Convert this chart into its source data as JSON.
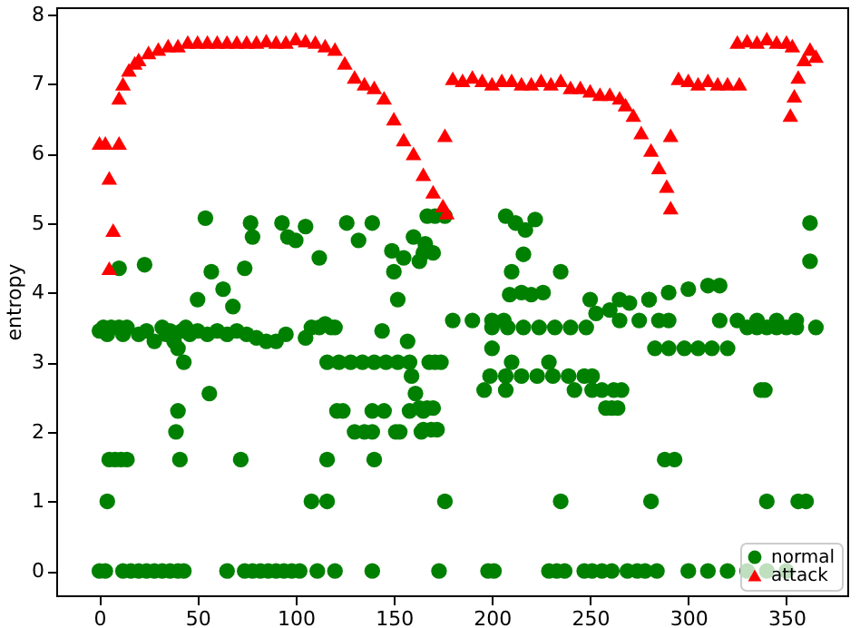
{
  "chart_data": {
    "type": "scatter",
    "ylabel": "entropy",
    "xlim": [
      -22,
      381
    ],
    "ylim": [
      -0.35,
      8.1
    ],
    "xticks": [
      0,
      50,
      100,
      150,
      200,
      250,
      300,
      350
    ],
    "yticks": [
      0,
      1,
      2,
      3,
      4,
      5,
      6,
      7,
      8
    ],
    "grid": false,
    "legend": "bottom right",
    "series": [
      {
        "name": "normal",
        "color": "#008000",
        "marker": "circle",
        "x": [
          0,
          2,
          4,
          6,
          10,
          12,
          14,
          20,
          24,
          28,
          32,
          34,
          36,
          38,
          40,
          42,
          44,
          46,
          50,
          55,
          60,
          65,
          70,
          75,
          80,
          85,
          90,
          95,
          105,
          108,
          112,
          115,
          118,
          120,
          10,
          23,
          50,
          57,
          63,
          68,
          74,
          54,
          77,
          78,
          93,
          96,
          100,
          105,
          112,
          126,
          132,
          139,
          149,
          155,
          163,
          150,
          152,
          43,
          116,
          122,
          128,
          134,
          140,
          146,
          152,
          158,
          144,
          157,
          159,
          161,
          56,
          40,
          121,
          124,
          139,
          145,
          158,
          165,
          39,
          130,
          135,
          139,
          151,
          153,
          164,
          5,
          8,
          11,
          14,
          41,
          72,
          116,
          140,
          4,
          108,
          116,
          0,
          3,
          12,
          16,
          20,
          24,
          28,
          32,
          36,
          40,
          43,
          65,
          74,
          78,
          82,
          86,
          90,
          94,
          98,
          102,
          111,
          120,
          139,
          173,
          198,
          201,
          229,
          233,
          237,
          247,
          251,
          256,
          261,
          269,
          274,
          278,
          284,
          300,
          310,
          320,
          330,
          340,
          350,
          176,
          235,
          281,
          340,
          356,
          360,
          288,
          293,
          165,
          169,
          172,
          163,
          167,
          170,
          258,
          261,
          264,
          196,
          207,
          242,
          251,
          256,
          262,
          266,
          337,
          339,
          199,
          207,
          215,
          223,
          231,
          239,
          247,
          251,
          168,
          171,
          174,
          210,
          229,
          200,
          283,
          290,
          298,
          305,
          312,
          320,
          200,
          208,
          216,
          224,
          232,
          240,
          248,
          335,
          345,
          355,
          365,
          330,
          340,
          350,
          167,
          171,
          176,
          160,
          166,
          170,
          165,
          207,
          212,
          217,
          222,
          216,
          210,
          235,
          209,
          215,
          220,
          226,
          250,
          265,
          280,
          253,
          260,
          270,
          280,
          290,
          300,
          310,
          316,
          180,
          190,
          200,
          206,
          265,
          275,
          285,
          290,
          316,
          325,
          335,
          345,
          355,
          362,
          362
        ],
        "values": [
          3.45,
          3.5,
          3.4,
          3.5,
          3.5,
          3.4,
          3.5,
          3.4,
          3.45,
          3.3,
          3.5,
          3.4,
          3.45,
          3.3,
          3.2,
          3.45,
          3.5,
          3.4,
          3.45,
          3.4,
          3.45,
          3.4,
          3.45,
          3.4,
          3.35,
          3.3,
          3.3,
          3.4,
          3.35,
          3.5,
          3.5,
          3.55,
          3.5,
          3.5,
          4.35,
          4.4,
          3.9,
          4.3,
          4.05,
          3.8,
          4.35,
          5.07,
          5.0,
          4.8,
          5.0,
          4.8,
          4.75,
          4.95,
          4.5,
          5.0,
          4.75,
          5.0,
          4.6,
          4.5,
          4.45,
          4.3,
          3.9,
          3.0,
          3.0,
          3.0,
          3.0,
          3.0,
          3.0,
          3.0,
          3.0,
          3.0,
          3.45,
          3.3,
          2.8,
          2.55,
          2.55,
          2.3,
          2.3,
          2.3,
          2.3,
          2.3,
          2.3,
          2.3,
          2.0,
          2.0,
          2.0,
          2.0,
          2.0,
          2.0,
          2.0,
          1.6,
          1.6,
          1.6,
          1.6,
          1.6,
          1.6,
          1.6,
          1.6,
          1.0,
          1.0,
          1.0,
          0,
          0,
          0,
          0,
          0,
          0,
          0,
          0,
          0,
          0,
          0,
          0,
          0,
          0,
          0,
          0,
          0,
          0,
          0,
          0,
          0,
          0,
          0,
          0,
          0,
          0,
          0,
          0,
          0,
          0,
          0,
          0,
          0,
          0,
          0,
          0,
          0,
          0,
          0,
          0,
          0,
          0,
          0,
          1.0,
          1.0,
          1.0,
          1.0,
          1.0,
          1.0,
          1.6,
          1.6,
          2.03,
          2.03,
          2.03,
          2.34,
          2.34,
          2.34,
          2.34,
          2.34,
          2.34,
          2.6,
          2.6,
          2.6,
          2.6,
          2.6,
          2.6,
          2.6,
          2.6,
          2.6,
          2.8,
          2.8,
          2.8,
          2.8,
          2.8,
          2.8,
          2.8,
          2.8,
          3.0,
          3.0,
          3.0,
          3.0,
          3.0,
          3.2,
          3.2,
          3.2,
          3.2,
          3.2,
          3.2,
          3.2,
          3.5,
          3.5,
          3.5,
          3.5,
          3.5,
          3.5,
          3.5,
          3.5,
          3.5,
          3.5,
          3.5,
          3.5,
          3.5,
          3.5,
          5.1,
          5.1,
          5.1,
          4.8,
          4.7,
          4.57,
          4.57,
          5.1,
          5.0,
          4.9,
          5.05,
          4.55,
          4.3,
          4.3,
          3.97,
          4.0,
          3.97,
          4.0,
          3.9,
          3.9,
          3.9,
          3.7,
          3.75,
          3.85,
          3.9,
          4.0,
          4.05,
          4.1,
          4.1,
          3.6,
          3.6,
          3.6,
          3.6,
          3.6,
          3.6,
          3.6,
          3.6,
          3.6,
          3.6,
          3.6,
          3.6,
          3.6,
          5.0,
          4.45
        ]
      },
      {
        "name": "attack",
        "color": "#ff0000",
        "marker": "triangle",
        "x": [
          0,
          3,
          5,
          7,
          5,
          10,
          10,
          12,
          15,
          18,
          20,
          25,
          30,
          35,
          40,
          45,
          50,
          55,
          60,
          65,
          70,
          75,
          80,
          85,
          90,
          95,
          100,
          105,
          110,
          115,
          120,
          125,
          130,
          135,
          140,
          145,
          150,
          155,
          160,
          165,
          170,
          175,
          177,
          176,
          180,
          185,
          190,
          195,
          200,
          205,
          210,
          215,
          220,
          225,
          230,
          235,
          240,
          245,
          250,
          255,
          260,
          265,
          268,
          272,
          276,
          281,
          285,
          289,
          291,
          291,
          295,
          300,
          305,
          310,
          315,
          320,
          326,
          325,
          330,
          335,
          340,
          345,
          350,
          353,
          352,
          354,
          356,
          359,
          362,
          365
        ],
        "values": [
          6.15,
          6.15,
          5.65,
          4.9,
          4.35,
          6.15,
          6.8,
          7.0,
          7.2,
          7.3,
          7.35,
          7.45,
          7.5,
          7.55,
          7.55,
          7.6,
          7.6,
          7.6,
          7.6,
          7.6,
          7.6,
          7.6,
          7.6,
          7.62,
          7.6,
          7.6,
          7.65,
          7.62,
          7.6,
          7.55,
          7.5,
          7.3,
          7.1,
          7.0,
          6.95,
          6.8,
          6.5,
          6.2,
          6.0,
          5.7,
          5.45,
          5.25,
          5.15,
          6.26,
          7.08,
          7.05,
          7.1,
          7.05,
          7.0,
          7.05,
          7.05,
          7.0,
          7.0,
          7.05,
          7.0,
          7.05,
          6.95,
          6.95,
          6.9,
          6.85,
          6.85,
          6.8,
          6.7,
          6.55,
          6.3,
          6.05,
          5.8,
          5.53,
          5.22,
          6.26,
          7.08,
          7.05,
          7.0,
          7.05,
          7.0,
          7.0,
          7.0,
          7.6,
          7.62,
          7.6,
          7.65,
          7.6,
          7.6,
          7.55,
          6.55,
          6.83,
          7.1,
          7.35,
          7.5,
          7.4
        ]
      }
    ]
  }
}
